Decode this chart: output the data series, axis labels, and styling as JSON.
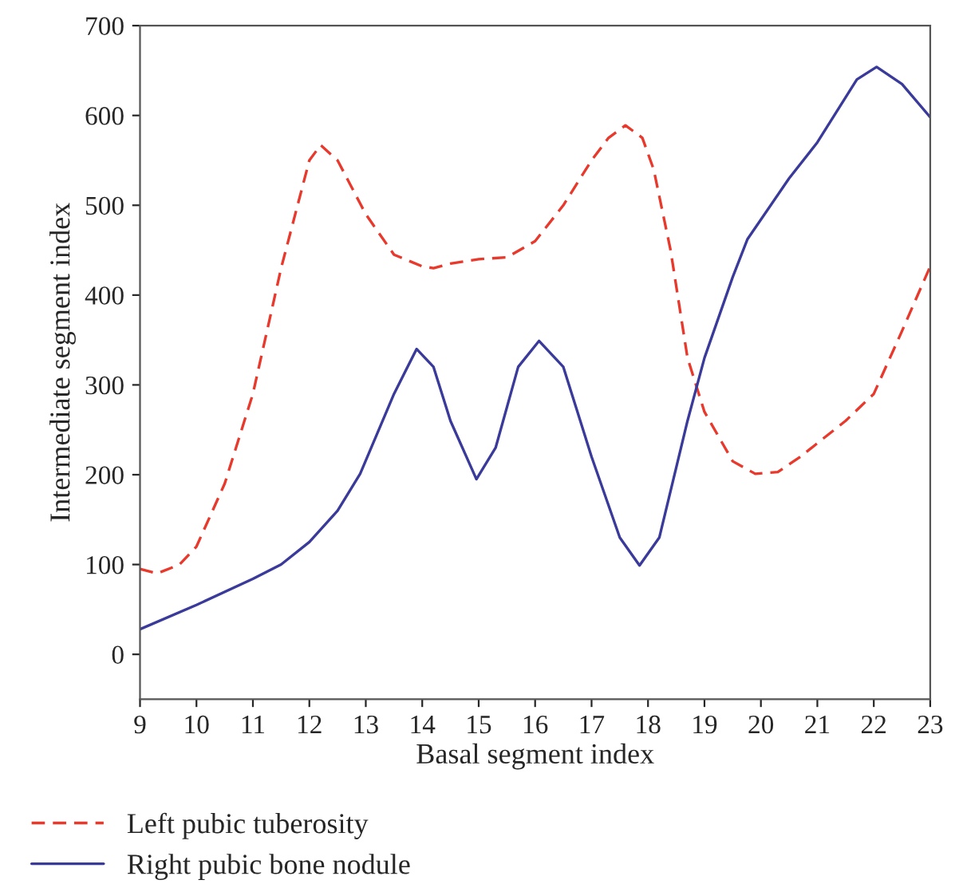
{
  "chart_data": {
    "type": "line",
    "xlabel": "Basal segment index",
    "ylabel": "Intermediate segment index",
    "xlim": [
      9,
      23
    ],
    "xticks": [
      9,
      10,
      11,
      12,
      13,
      14,
      15,
      16,
      17,
      18,
      19,
      20,
      21,
      22,
      23
    ],
    "ylim": [
      -50,
      700
    ],
    "yticks": [
      0,
      100,
      200,
      300,
      400,
      500,
      600,
      700
    ],
    "grid": false,
    "legend": "bottom",
    "series": [
      {
        "name": "Left pubic tuberosity",
        "color": "#e8392d",
        "line_style": "dashed",
        "x": [
          9,
          9.3,
          9.7,
          10,
          10.5,
          11,
          11.5,
          12,
          12.2,
          12.5,
          13,
          13.5,
          14,
          14.2,
          14.5,
          15,
          15.5,
          16,
          16.5,
          17,
          17.3,
          17.6,
          17.9,
          18.1,
          18.4,
          18.7,
          19,
          19.5,
          19.9,
          20.3,
          20.7,
          21,
          21.5,
          22,
          22.5,
          23
        ],
        "values": [
          95,
          90,
          100,
          120,
          190,
          290,
          430,
          550,
          567,
          550,
          490,
          445,
          432,
          430,
          435,
          440,
          442,
          460,
          500,
          550,
          575,
          589,
          575,
          540,
          450,
          330,
          270,
          215,
          201,
          203,
          220,
          235,
          260,
          290,
          360,
          432
        ]
      },
      {
        "name": "Right pubic bone nodule",
        "color": "#3a3a9a",
        "line_style": "solid",
        "x": [
          9,
          10,
          11,
          11.5,
          12,
          12.5,
          12.9,
          13.5,
          13.9,
          14.2,
          14.5,
          14.96,
          15.3,
          15.7,
          16.07,
          16.5,
          17,
          17.5,
          17.85,
          18.2,
          18.7,
          19,
          19.5,
          19.76,
          20.5,
          21,
          21.3,
          21.7,
          22.05,
          22.5,
          23
        ],
        "values": [
          28,
          55,
          84,
          100,
          125,
          160,
          201,
          290,
          340,
          320,
          260,
          195,
          230,
          320,
          349,
          320,
          220,
          130,
          99,
          130,
          260,
          330,
          420,
          462,
          530,
          570,
          600,
          640,
          654,
          635,
          598
        ]
      }
    ]
  }
}
